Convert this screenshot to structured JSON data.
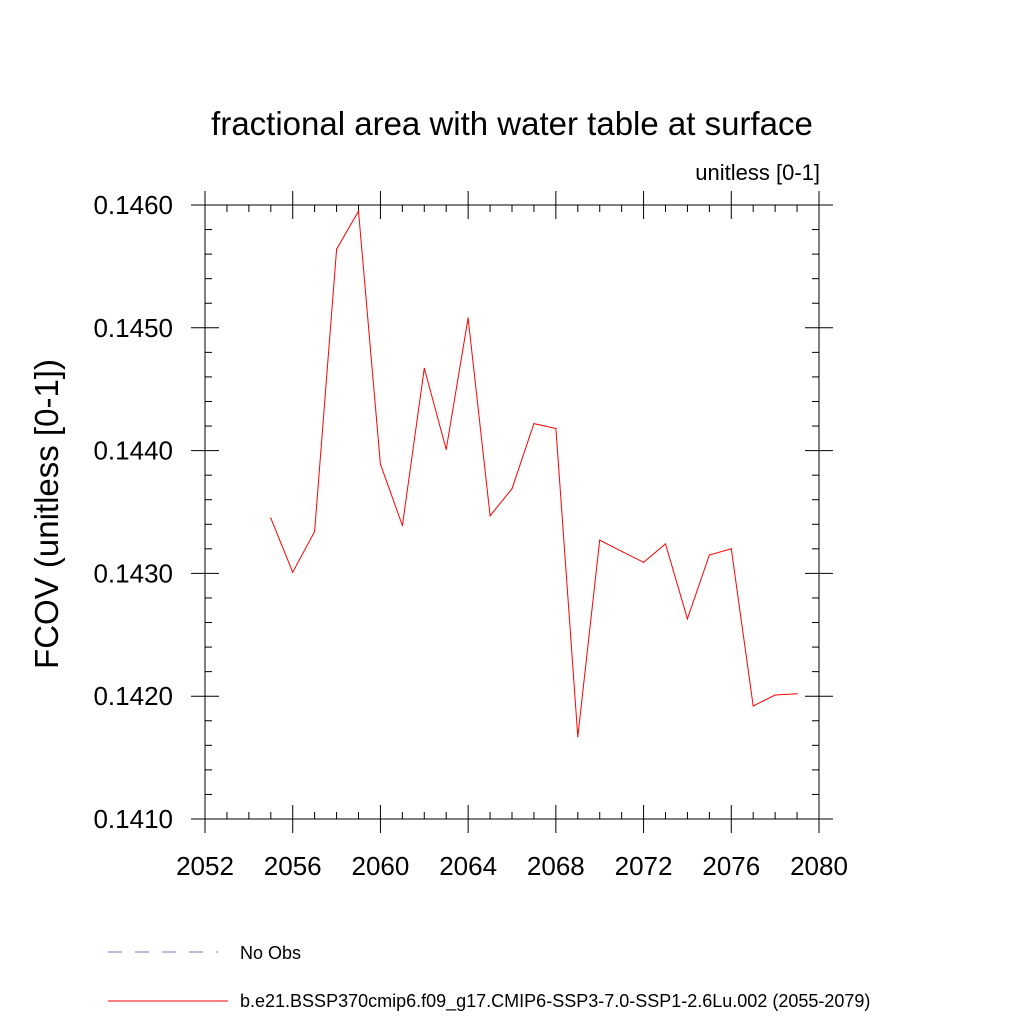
{
  "chart_data": {
    "type": "line",
    "title": "fractional area with water table at surface",
    "units_label": "unitless [0-1]",
    "ylabel": "FCOV  (unitless [0-1])",
    "xlabel": "",
    "xlim": [
      2052,
      2080
    ],
    "ylim": [
      0.141,
      0.146
    ],
    "x_ticks": [
      2052,
      2056,
      2060,
      2064,
      2068,
      2072,
      2076,
      2080
    ],
    "x_tick_labels": [
      "2052",
      "2056",
      "2060",
      "2064",
      "2068",
      "2072",
      "2076",
      "2080"
    ],
    "y_ticks": [
      0.141,
      0.142,
      0.143,
      0.144,
      0.145,
      0.146
    ],
    "y_tick_labels": [
      "0.1410",
      "0.1420",
      "0.1430",
      "0.1440",
      "0.1450",
      "0.1460"
    ],
    "x_minor_step": 1,
    "y_minor_step": 0.0002,
    "series": [
      {
        "name": "b.e21.BSSP370cmip6.f09_g17.CMIP6-SSP3-7.0-SSP1-2.6Lu.002 (2055-2079)",
        "color": "#ff0000",
        "x": [
          2055,
          2056,
          2057,
          2058,
          2059,
          2060,
          2061,
          2062,
          2063,
          2064,
          2065,
          2066,
          2067,
          2068,
          2069,
          2070,
          2071,
          2072,
          2073,
          2074,
          2075,
          2076,
          2077,
          2078,
          2079
        ],
        "y": [
          0.14345,
          0.14301,
          0.14334,
          0.14564,
          0.14595,
          0.14389,
          0.14339,
          0.14467,
          0.14401,
          0.14508,
          0.14347,
          0.14369,
          0.14422,
          0.14418,
          0.14167,
          0.14327,
          0.14318,
          0.14309,
          0.14324,
          0.14263,
          0.14315,
          0.1432,
          0.14192,
          0.14201,
          0.14202
        ]
      }
    ],
    "legend": [
      {
        "label": "No Obs",
        "style": "dashed",
        "color": "#7b72b8"
      },
      {
        "label": "b.e21.BSSP370cmip6.f09_g17.CMIP6-SSP3-7.0-SSP1-2.6Lu.002 (2055-2079)",
        "style": "solid",
        "color": "#ff0000"
      }
    ],
    "legend_position": "bottom-left"
  }
}
